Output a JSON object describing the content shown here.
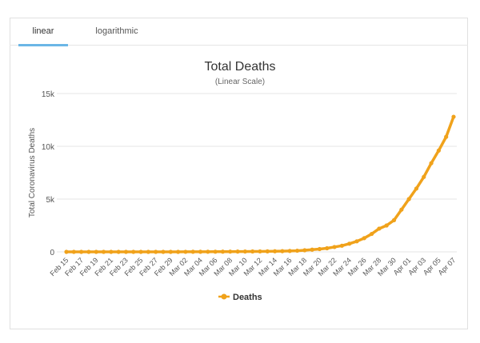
{
  "tabs": [
    {
      "label": "linear",
      "active": true
    },
    {
      "label": "logarithmic",
      "active": false
    }
  ],
  "chart_data": {
    "type": "line",
    "title": "Total Deaths",
    "subtitle": "(Linear Scale)",
    "ylabel": "Total Coronavirus Deaths",
    "xlabel": "",
    "ylim": [
      0,
      15000
    ],
    "yticks": [
      0,
      5000,
      10000,
      15000
    ],
    "ytick_labels": [
      "0",
      "5k",
      "10k",
      "15k"
    ],
    "grid": true,
    "legend_position": "bottom-center",
    "color": "#f0a21b",
    "x_tick_labels": [
      "Feb 15",
      "Feb 17",
      "Feb 19",
      "Feb 21",
      "Feb 23",
      "Feb 25",
      "Feb 27",
      "Feb 29",
      "Mar 02",
      "Mar 04",
      "Mar 06",
      "Mar 08",
      "Mar 10",
      "Mar 12",
      "Mar 14",
      "Mar 16",
      "Mar 18",
      "Mar 20",
      "Mar 22",
      "Mar 24",
      "Mar 26",
      "Mar 28",
      "Mar 30",
      "Apr 01",
      "Apr 03",
      "Apr 05",
      "Apr 07"
    ],
    "series": [
      {
        "name": "Deaths",
        "x": [
          "Feb 15",
          "Feb 16",
          "Feb 17",
          "Feb 18",
          "Feb 19",
          "Feb 20",
          "Feb 21",
          "Feb 22",
          "Feb 23",
          "Feb 24",
          "Feb 25",
          "Feb 26",
          "Feb 27",
          "Feb 28",
          "Feb 29",
          "Mar 01",
          "Mar 02",
          "Mar 03",
          "Mar 04",
          "Mar 05",
          "Mar 06",
          "Mar 07",
          "Mar 08",
          "Mar 09",
          "Mar 10",
          "Mar 11",
          "Mar 12",
          "Mar 13",
          "Mar 14",
          "Mar 15",
          "Mar 16",
          "Mar 17",
          "Mar 18",
          "Mar 19",
          "Mar 20",
          "Mar 21",
          "Mar 22",
          "Mar 23",
          "Mar 24",
          "Mar 25",
          "Mar 26",
          "Mar 27",
          "Mar 28",
          "Mar 29",
          "Mar 30",
          "Mar 31",
          "Apr 01",
          "Apr 02",
          "Apr 03",
          "Apr 04",
          "Apr 05",
          "Apr 06",
          "Apr 07"
        ],
        "values": [
          0,
          0,
          0,
          0,
          0,
          0,
          0,
          0,
          0,
          0,
          0,
          0,
          0,
          0,
          1,
          1,
          6,
          9,
          11,
          12,
          15,
          19,
          22,
          26,
          31,
          38,
          41,
          49,
          57,
          68,
          87,
          108,
          150,
          208,
          264,
          340,
          459,
          581,
          770,
          1000,
          1300,
          1700,
          2200,
          2500,
          3000,
          4000,
          5000,
          6000,
          7100,
          8400,
          9600,
          10900,
          12800
        ]
      }
    ]
  }
}
